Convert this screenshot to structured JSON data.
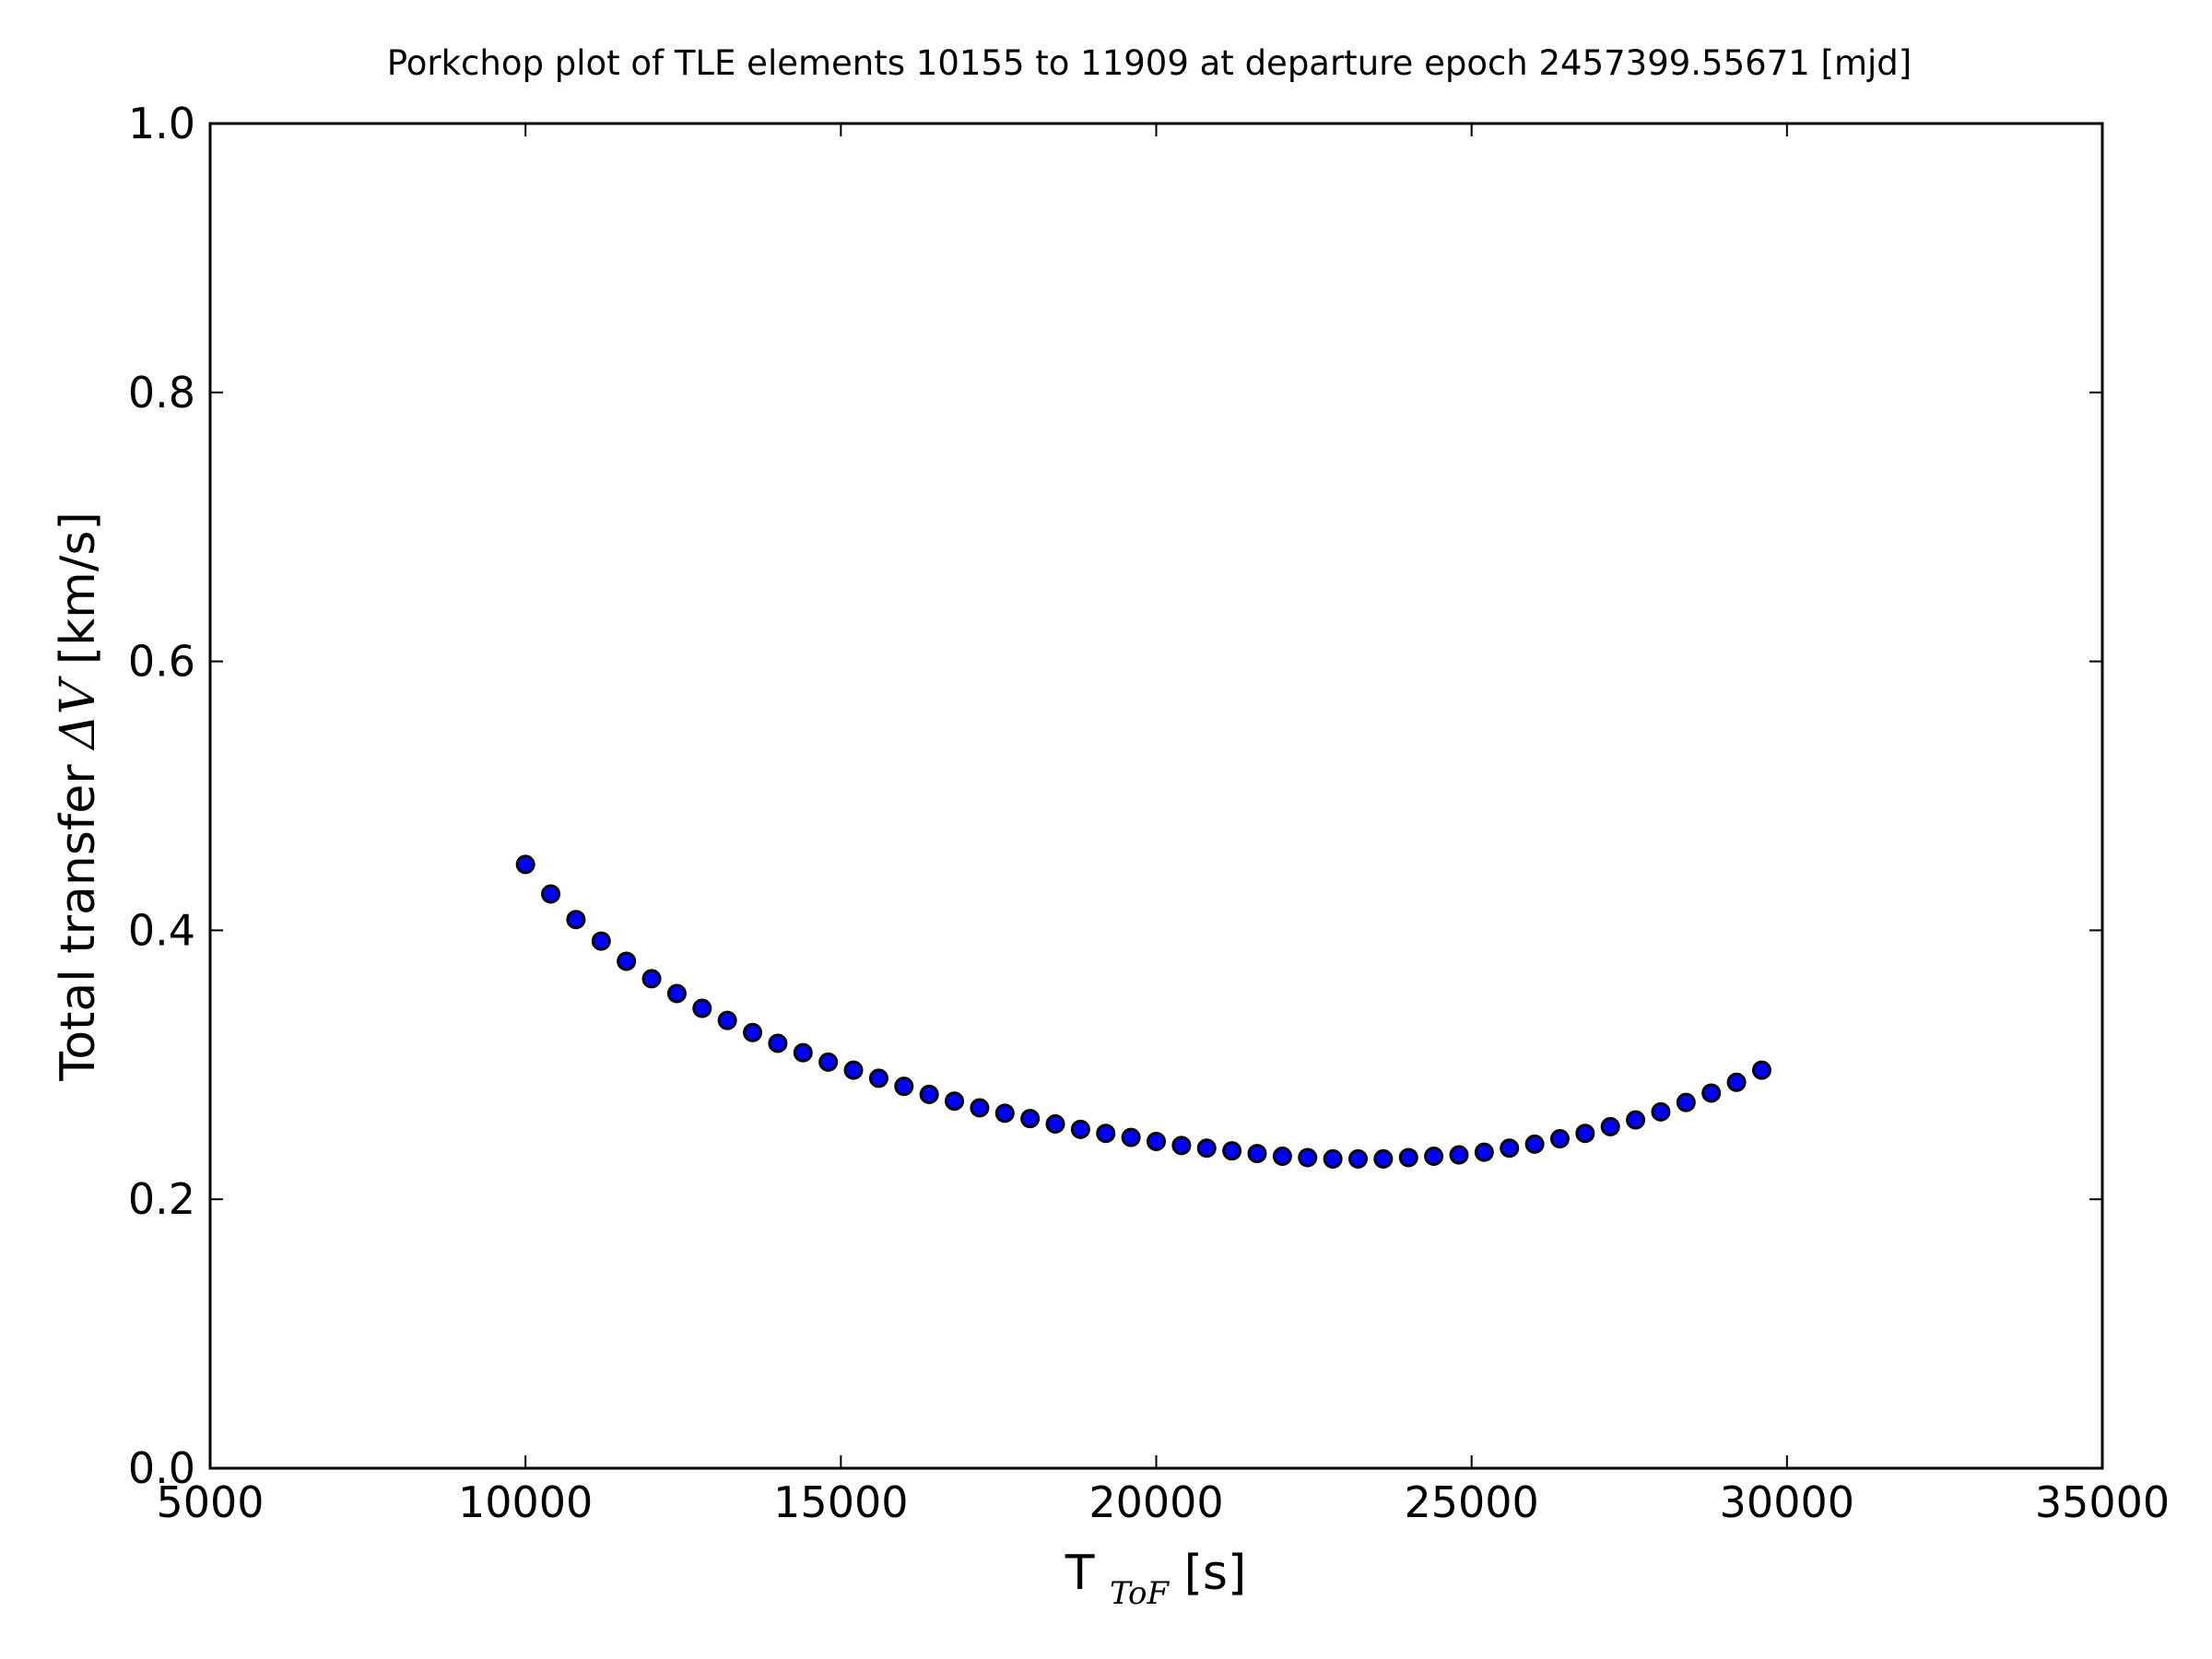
{
  "chart_data": {
    "type": "scatter",
    "title": "Porkchop plot of TLE elements 10155 to 11909 at departure epoch 2457399.55671 [mjd]",
    "xlabel": {
      "main": "T",
      "subscript": "ToF",
      "unit": " [s]"
    },
    "ylabel": {
      "prefix": "Total transfer ",
      "symbol": "ΔV",
      "unit": " [km/s]"
    },
    "xlim": [
      5000,
      35000
    ],
    "ylim": [
      0.0,
      1.0
    ],
    "xticks": [
      5000,
      10000,
      15000,
      20000,
      25000,
      30000,
      35000
    ],
    "xtick_labels": [
      "5000",
      "10000",
      "15000",
      "20000",
      "25000",
      "30000",
      "35000"
    ],
    "yticks": [
      0.0,
      0.2,
      0.4,
      0.6,
      0.8,
      1.0
    ],
    "ytick_labels": [
      "0.0",
      "0.2",
      "0.4",
      "0.6",
      "0.8",
      "1.0"
    ],
    "grid": false,
    "marker_color": "#0000ff",
    "marker_edge_color": "#000000",
    "x": [
      10000,
      10400,
      10800,
      11200,
      11600,
      12000,
      12400,
      12800,
      13200,
      13600,
      14000,
      14400,
      14800,
      15200,
      15600,
      16000,
      16400,
      16800,
      17200,
      17600,
      18000,
      18400,
      18800,
      19200,
      19600,
      20000,
      20400,
      20800,
      21200,
      21600,
      22000,
      22400,
      22800,
      23200,
      23600,
      24000,
      24400,
      24800,
      25200,
      25600,
      26000,
      26400,
      26800,
      27200,
      27600,
      28000,
      28400,
      28800,
      29200,
      29600
    ],
    "y": [
      0.449,
      0.427,
      0.408,
      0.392,
      0.377,
      0.364,
      0.353,
      0.342,
      0.333,
      0.324,
      0.316,
      0.309,
      0.302,
      0.296,
      0.29,
      0.284,
      0.278,
      0.273,
      0.268,
      0.264,
      0.26,
      0.256,
      0.252,
      0.249,
      0.246,
      0.243,
      0.24,
      0.238,
      0.236,
      0.234,
      0.232,
      0.231,
      0.23,
      0.23,
      0.23,
      0.231,
      0.232,
      0.233,
      0.235,
      0.238,
      0.241,
      0.245,
      0.249,
      0.254,
      0.259,
      0.265,
      0.272,
      0.279,
      0.287,
      0.296
    ]
  }
}
